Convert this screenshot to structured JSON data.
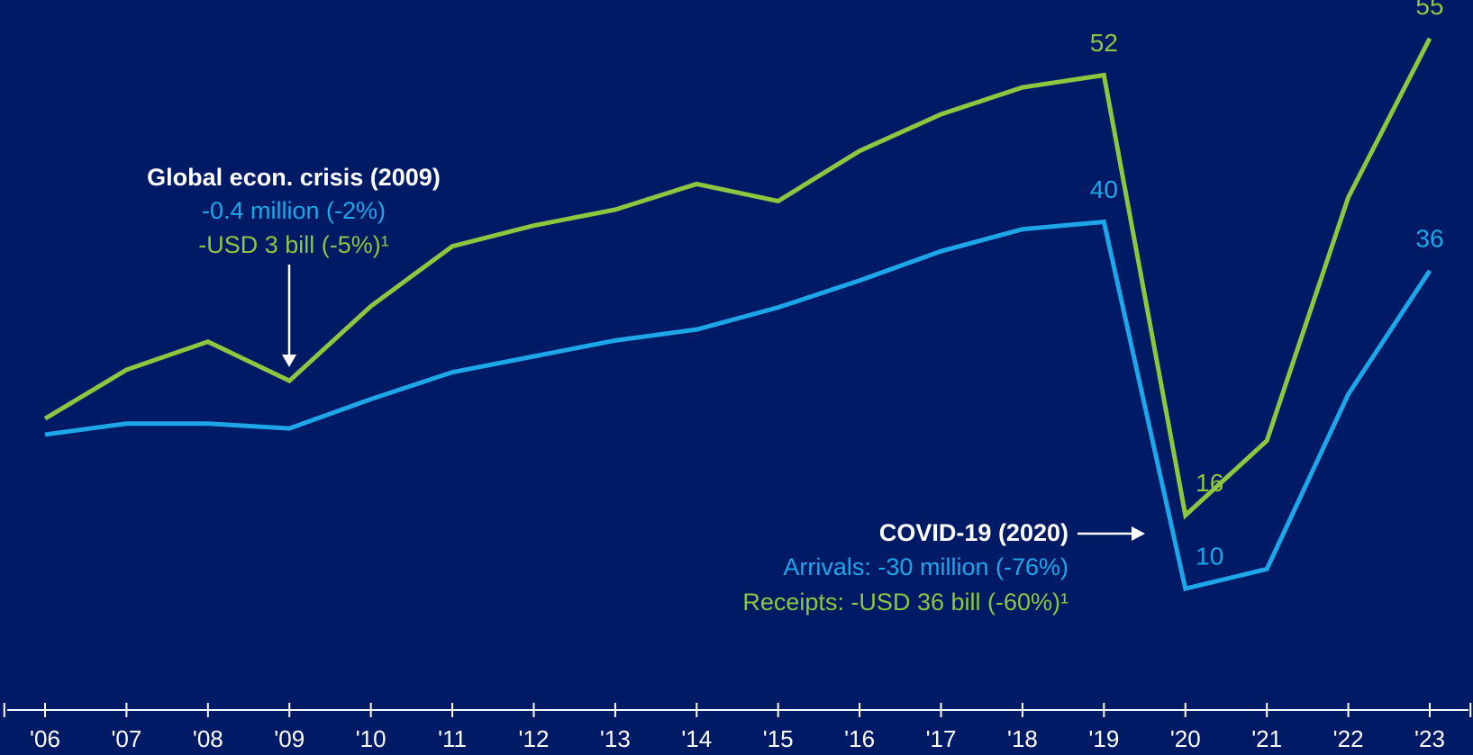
{
  "chart_data": {
    "type": "line",
    "categories": [
      "'06",
      "'07",
      "'08",
      "'09",
      "'10",
      "'11",
      "'12",
      "'13",
      "'14",
      "'15",
      "'16",
      "'17",
      "'18",
      "'19",
      "'20",
      "'21",
      "'22",
      "'23"
    ],
    "series": [
      {
        "color": "#8dc63f",
        "values": [
          23.9,
          27.9,
          30.2,
          27.0,
          33.1,
          38.0,
          39.7,
          41.0,
          43.1,
          41.7,
          45.8,
          48.8,
          51.0,
          52,
          16,
          22.1,
          42.0,
          55
        ],
        "value_labels": [
          null,
          null,
          null,
          null,
          null,
          null,
          null,
          null,
          null,
          null,
          null,
          null,
          null,
          "52",
          "16",
          null,
          null,
          "55"
        ]
      },
      {
        "color": "#1ea7e8",
        "values": [
          22.6,
          23.5,
          23.5,
          23.1,
          25.5,
          27.7,
          29.0,
          30.3,
          31.2,
          33.0,
          35.2,
          37.6,
          39.4,
          40,
          10,
          11.6,
          25.9,
          36
        ],
        "value_labels": [
          null,
          null,
          null,
          null,
          null,
          null,
          null,
          null,
          null,
          null,
          null,
          null,
          null,
          "40",
          "10",
          null,
          null,
          "36"
        ]
      }
    ],
    "ylim": [
      0,
      58
    ],
    "annotations": [
      {
        "title": "Global econ. crisis (2009)",
        "lines": [
          "-0.4 million (-2%)",
          "-USD 3 bill (-5%)¹"
        ]
      },
      {
        "title": "COVID-19 (2020)",
        "lines": [
          "Arrivals: -30 million (-76%)",
          "Receipts: -USD 36 bill (-60%)¹"
        ]
      }
    ]
  }
}
